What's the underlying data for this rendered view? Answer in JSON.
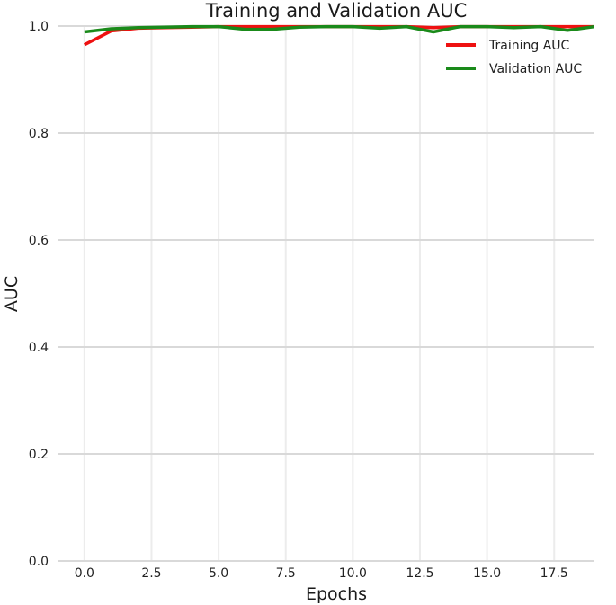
{
  "chart_data": {
    "type": "line",
    "title": "Training and Validation AUC",
    "xlabel": "Epochs",
    "ylabel": "AUC",
    "xlim": [
      -1,
      19
    ],
    "ylim": [
      0.0,
      1.0
    ],
    "x_ticks": [
      0.0,
      2.5,
      5.0,
      7.5,
      10.0,
      12.5,
      15.0,
      17.5
    ],
    "x_tick_labels": [
      "0.0",
      "2.5",
      "5.0",
      "7.5",
      "10.0",
      "12.5",
      "15.0",
      "17.5"
    ],
    "y_ticks": [
      0.0,
      0.2,
      0.4,
      0.6,
      0.8,
      1.0
    ],
    "y_tick_labels": [
      "0.0",
      "0.2",
      "0.4",
      "0.6",
      "0.8",
      "1.0"
    ],
    "grid": true,
    "legend_position": "top-right",
    "x": [
      0,
      1,
      2,
      3,
      4,
      5,
      6,
      7,
      8,
      9,
      10,
      11,
      12,
      13,
      14,
      15,
      16,
      17,
      18,
      19
    ],
    "series": [
      {
        "name": "Training AUC",
        "color": "#ee1111",
        "values": [
          0.965,
          0.991,
          0.996,
          0.997,
          0.998,
          0.999,
          0.999,
          0.999,
          0.999,
          0.999,
          0.999,
          0.999,
          0.999,
          0.997,
          0.999,
          0.999,
          0.999,
          0.999,
          0.999,
          0.999
        ]
      },
      {
        "name": "Validation AUC",
        "color": "#1a8a1a",
        "values": [
          0.989,
          0.995,
          0.997,
          0.998,
          0.999,
          0.999,
          0.994,
          0.994,
          0.998,
          0.999,
          0.999,
          0.996,
          0.999,
          0.989,
          0.999,
          0.999,
          0.997,
          0.999,
          0.992,
          0.999
        ]
      }
    ]
  }
}
